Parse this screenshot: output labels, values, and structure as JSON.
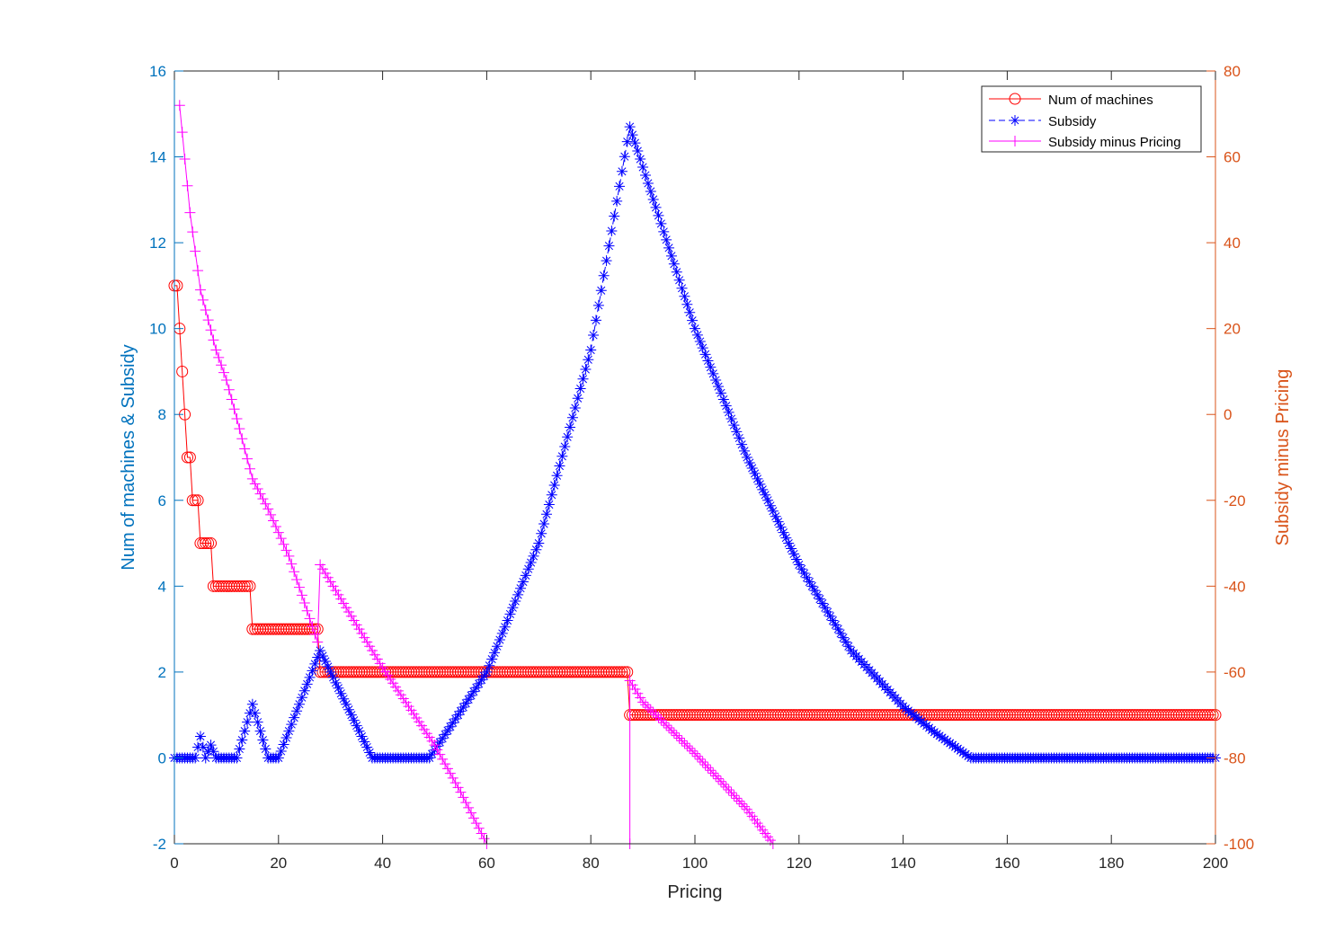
{
  "chart_data": {
    "type": "line",
    "xlabel": "Pricing",
    "ylabel_left": "Num of machines & Subsidy",
    "ylabel_right": "Subsidy minus Pricing",
    "xlim": [
      0,
      200
    ],
    "ylim_left": [
      -2,
      16
    ],
    "ylim_right": [
      -100,
      80
    ],
    "x_ticks": [
      0,
      20,
      40,
      60,
      80,
      100,
      120,
      140,
      160,
      180,
      200
    ],
    "y_left_ticks": [
      -2,
      0,
      2,
      4,
      6,
      8,
      10,
      12,
      14,
      16
    ],
    "y_right_ticks": [
      -100,
      -80,
      -60,
      -40,
      -20,
      0,
      20,
      40,
      60,
      80
    ],
    "grid": false,
    "legend_position": "top-right",
    "colors": {
      "left_axis": "#0072BD",
      "right_axis": "#D95319",
      "machines": "#FF0000",
      "subsidy": "#0000FF",
      "subsidy_minus_pricing": "#FF00FF"
    },
    "series": [
      {
        "name": "Num of machines",
        "axis": "left",
        "marker": "circle",
        "line": "solid",
        "step": 0.5,
        "steps": [
          {
            "x0": 0,
            "x1": 0.5,
            "y": 11
          },
          {
            "x0": 1,
            "x1": 1,
            "y": 10
          },
          {
            "x0": 1.5,
            "x1": 1.5,
            "y": 9
          },
          {
            "x0": 2,
            "x1": 2,
            "y": 8
          },
          {
            "x0": 2.5,
            "x1": 3,
            "y": 7
          },
          {
            "x0": 3.5,
            "x1": 4.5,
            "y": 6
          },
          {
            "x0": 5,
            "x1": 7,
            "y": 5
          },
          {
            "x0": 7.5,
            "x1": 14.5,
            "y": 4
          },
          {
            "x0": 15,
            "x1": 27.5,
            "y": 3
          },
          {
            "x0": 28,
            "x1": 87,
            "y": 2
          },
          {
            "x0": 87.5,
            "x1": 200,
            "y": 1
          }
        ]
      },
      {
        "name": "Subsidy",
        "axis": "left",
        "marker": "asterisk",
        "line": "dashed",
        "step": 0.5,
        "knots": [
          [
            0,
            0
          ],
          [
            4,
            0
          ],
          [
            5,
            0.5
          ],
          [
            6,
            0
          ],
          [
            7,
            0.3
          ],
          [
            8,
            0
          ],
          [
            12,
            0
          ],
          [
            15,
            1.25
          ],
          [
            18,
            0
          ],
          [
            20,
            0
          ],
          [
            28,
            2.5
          ],
          [
            38,
            0
          ],
          [
            49,
            0
          ],
          [
            60,
            2
          ],
          [
            70,
            5
          ],
          [
            80,
            9.5
          ],
          [
            87.5,
            14.7
          ],
          [
            100,
            10
          ],
          [
            110,
            7
          ],
          [
            120,
            4.5
          ],
          [
            130,
            2.5
          ],
          [
            140,
            1.2
          ],
          [
            146,
            0.6
          ],
          [
            153,
            0
          ],
          [
            200,
            0
          ]
        ]
      },
      {
        "name": "Subsidy minus Pricing",
        "axis": "right",
        "marker": "plus",
        "line": "solid",
        "step": 0.5,
        "segments": [
          {
            "knots": [
              [
                1,
                72
              ],
              [
                3,
                47
              ],
              [
                5,
                29
              ],
              [
                8,
                15
              ],
              [
                10,
                8
              ],
              [
                12,
                -1
              ],
              [
                15,
                -15
              ],
              [
                18,
                -22
              ],
              [
                22,
                -33
              ],
              [
                27.5,
                -53
              ]
            ]
          },
          {
            "knots": [
              [
                28,
                -35
              ],
              [
                40,
                -59
              ],
              [
                50,
                -77
              ],
              [
                55,
                -88
              ],
              [
                60,
                -100
              ]
            ]
          },
          {
            "knots": [
              [
                87.5,
                -100
              ]
            ]
          },
          {
            "knots": [
              [
                87.5,
                -62
              ],
              [
                90,
                -67
              ],
              [
                100,
                -79
              ],
              [
                110,
                -92
              ],
              [
                115,
                -100
              ]
            ]
          }
        ]
      }
    ]
  }
}
